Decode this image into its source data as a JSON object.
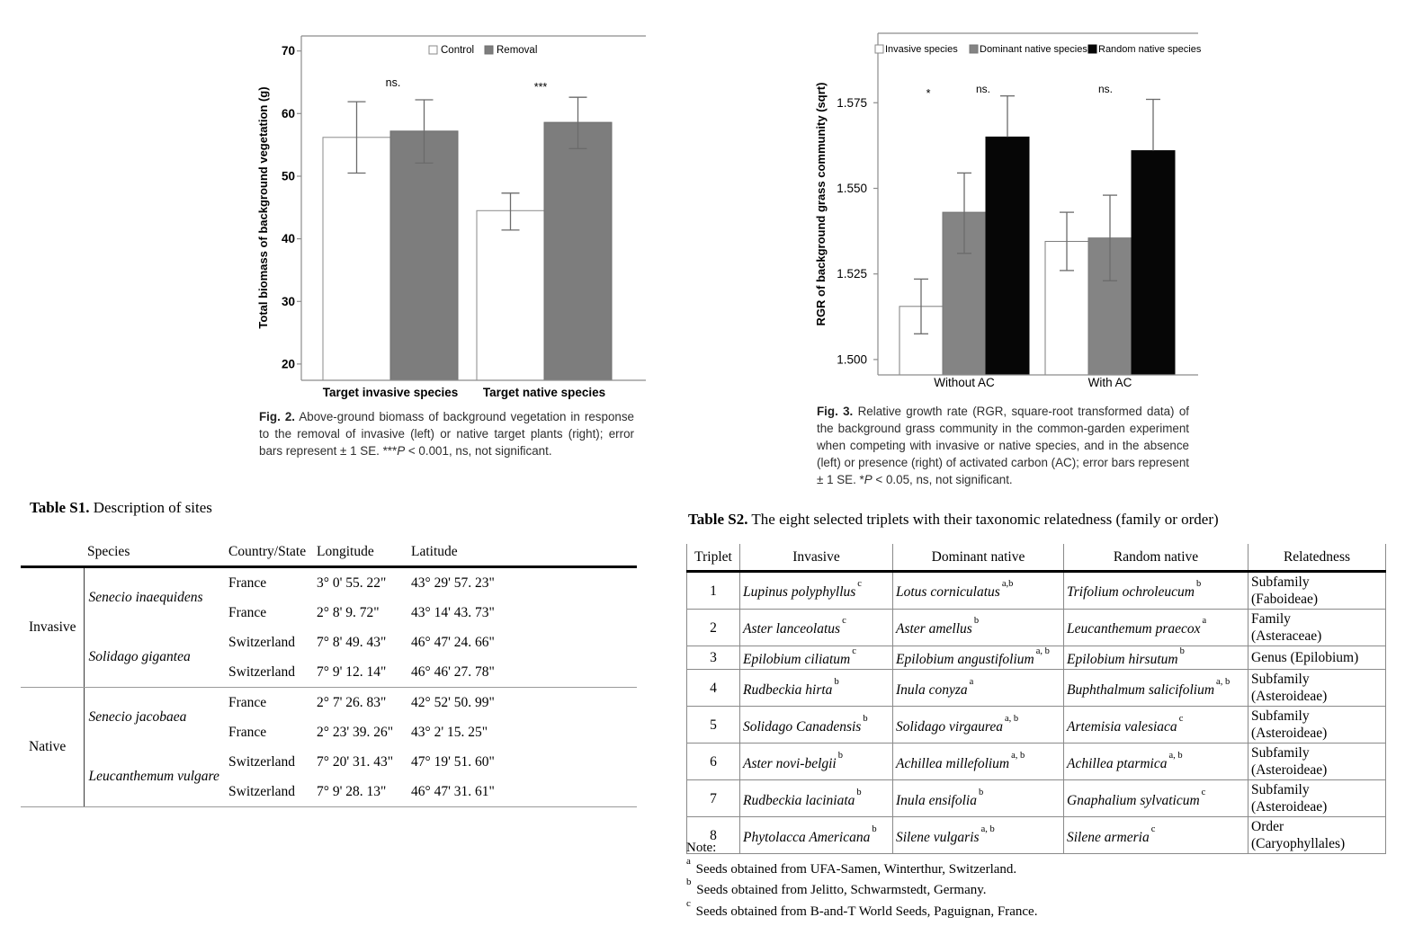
{
  "chart_data": [
    {
      "id": "fig2",
      "type": "bar",
      "title": "",
      "xlabel": "",
      "ylabel": "Total biomass of background vegetation (g)",
      "categories": [
        "Target invasive species",
        "Target native species"
      ],
      "series": [
        {
          "name": "Control",
          "fill": "#ffffff",
          "stroke": "#8a8a8a",
          "values": [
            56.2,
            44.5
          ],
          "err_low": [
            50.5,
            41.4
          ],
          "err_high": [
            61.9,
            47.3
          ]
        },
        {
          "name": "Removal",
          "fill": "#7d7d7d",
          "stroke": "#6f6f6f",
          "values": [
            57.2,
            58.6
          ],
          "err_low": [
            52.1,
            54.4
          ],
          "err_high": [
            62.2,
            62.6
          ]
        }
      ],
      "ylim": [
        17.4,
        72.4
      ],
      "yticks": [
        {
          "v": 20,
          "label": "20"
        },
        {
          "v": 30,
          "label": "30"
        },
        {
          "v": 40,
          "label": "40"
        },
        {
          "v": 50,
          "label": "50"
        },
        {
          "v": 60,
          "label": "60"
        },
        {
          "v": 70,
          "label": "70"
        }
      ],
      "annotations": [
        {
          "text": "ns."
        },
        {
          "text": "***"
        }
      ],
      "legend_position": "top-center",
      "grid": false
    },
    {
      "id": "fig3",
      "type": "bar",
      "title": "",
      "xlabel": "",
      "ylabel": "RGR of background grass community (sqrt)",
      "categories": [
        "Without AC",
        "With AC"
      ],
      "series": [
        {
          "name": "Invasive species",
          "fill": "#ffffff",
          "stroke": "#7e7e7e",
          "values": [
            1.5155,
            1.5345
          ],
          "err_low": [
            1.5075,
            1.526
          ],
          "err_high": [
            1.5235,
            1.543
          ]
        },
        {
          "name": "Dominant native species",
          "fill": "#848484",
          "stroke": "#767676",
          "values": [
            1.543,
            1.5355
          ],
          "err_low": [
            1.531,
            1.523
          ],
          "err_high": [
            1.5545,
            1.548
          ]
        },
        {
          "name": "Random native species",
          "fill": "#060606",
          "stroke": "#060606",
          "values": [
            1.565,
            1.561
          ],
          "err_low": [
            null,
            null
          ],
          "err_high": [
            1.577,
            1.576
          ]
        }
      ],
      "ylim": [
        1.4955,
        1.5953
      ],
      "yticks": [
        {
          "v": 1.5,
          "label": "1.500"
        },
        {
          "v": 1.525,
          "label": "1.525"
        },
        {
          "v": 1.55,
          "label": "1.550"
        },
        {
          "v": 1.575,
          "label": "1.575"
        }
      ],
      "annotations": [
        {
          "text": "*"
        },
        {
          "text": "ns."
        },
        {
          "text": "ns."
        }
      ],
      "legend_position": "top-inside",
      "grid": false
    }
  ],
  "fig2": {
    "caption": {
      "label": "Fig. 2.",
      "body": " Above-ground biomass of background vegetation in response to the removal of invasive (left) or native target plants (right); error bars represent ± 1 SE. ***",
      "p": "P",
      "tail": " < 0.001, ns, not significant."
    }
  },
  "fig3": {
    "caption": {
      "label": "Fig. 3.",
      "body": " Relative growth rate (RGR, square-root transformed data) of the background grass community in the common-garden experiment when competing with invasive or native species, and in the absence (left) or presence (right) of activated carbon (AC); error bars represent ± 1 SE. *",
      "p": "P",
      "tail": " < 0.05, ns, not significant."
    }
  },
  "tableS1": {
    "title_label": "Table S1.",
    "title_text": " Description of sites",
    "headers": [
      "Species",
      "Country/State",
      "Longitude",
      "Latitude"
    ],
    "groups": [
      {
        "label": "Invasive",
        "species": [
          {
            "name": "Senecio inaequidens",
            "sites": [
              [
                "France",
                "3° 0' 55. 22\"",
                "43° 29' 57. 23\""
              ],
              [
                "France",
                "2° 8' 9. 72\"",
                "43° 14' 43. 73\""
              ]
            ]
          },
          {
            "name": "Solidago gigantea",
            "sites": [
              [
                "Switzerland",
                "7° 8' 49. 43\"",
                "46° 47' 24. 66\""
              ],
              [
                "Switzerland",
                "7° 9' 12. 14\"",
                "46° 46' 27. 78\""
              ]
            ]
          }
        ]
      },
      {
        "label": "Native",
        "species": [
          {
            "name": "Senecio jacobaea",
            "sites": [
              [
                "France",
                "2° 7' 26. 83\"",
                "42° 52' 50. 99\""
              ],
              [
                "France",
                "2° 23' 39. 26\"",
                "43° 2' 15. 25\""
              ]
            ]
          },
          {
            "name": "Leucanthemum vulgare",
            "sites": [
              [
                "Switzerland",
                "7° 20' 31. 43\"",
                "47° 19' 51. 60\""
              ],
              [
                "Switzerland",
                "7° 9' 28. 13\"",
                "46° 47' 31. 61\""
              ]
            ]
          }
        ]
      }
    ]
  },
  "tableS2": {
    "title_label": "Table S2.",
    "title_text": " The eight selected triplets with their taxonomic relatedness (family or order)",
    "headers": [
      "Triplet",
      "Invasive",
      "Dominant native",
      "Random native",
      "Relatedness"
    ],
    "rows": [
      {
        "triplet": "1",
        "invasive": {
          "name": "Lupinus polyphyllus",
          "sup": "c"
        },
        "dominant": {
          "name": "Lotus corniculatus",
          "sup": "a,b"
        },
        "random": {
          "name": "Trifolium ochroleucum",
          "sup": "b"
        },
        "relatedness": [
          "Subfamily",
          "(Faboideae)"
        ]
      },
      {
        "triplet": "2",
        "invasive": {
          "name": "Aster lanceolatus",
          "sup": "c"
        },
        "dominant": {
          "name": "Aster amellus",
          "sup": "b"
        },
        "random": {
          "name": "Leucanthemum praecox",
          "sup": "a"
        },
        "relatedness": [
          "Family",
          "(Asteraceae)"
        ]
      },
      {
        "triplet": "3",
        "invasive": {
          "name": "Epilobium ciliatum",
          "sup": "c"
        },
        "dominant": {
          "name": "Epilobium angustifolium",
          "sup": "a, b"
        },
        "random": {
          "name": "Epilobium hirsutum",
          "sup": "b"
        },
        "relatedness": [
          "Genus (Epilobium)"
        ]
      },
      {
        "triplet": "4",
        "invasive": {
          "name": "Rudbeckia hirta",
          "sup": "b"
        },
        "dominant": {
          "name": "Inula conyza",
          "sup": "a"
        },
        "random": {
          "name": "Buphthalmum salicifolium",
          "sup": "a, b"
        },
        "relatedness": [
          "Subfamily",
          "(Asteroideae)"
        ]
      },
      {
        "triplet": "5",
        "invasive": {
          "name": "Solidago Canadensis",
          "sup": "b"
        },
        "dominant": {
          "name": "Solidago virgaurea",
          "sup": "a, b"
        },
        "random": {
          "name": "Artemisia valesiaca",
          "sup": "c"
        },
        "relatedness": [
          "Subfamily",
          "(Asteroideae)"
        ]
      },
      {
        "triplet": "6",
        "invasive": {
          "name": "Aster novi-belgii",
          "sup": "b"
        },
        "dominant": {
          "name": "Achillea millefolium",
          "sup": "a, b"
        },
        "random": {
          "name": "Achillea ptarmica",
          "sup": "a, b"
        },
        "relatedness": [
          "Subfamily",
          "(Asteroideae)"
        ]
      },
      {
        "triplet": "7",
        "invasive": {
          "name": "Rudbeckia laciniata",
          "sup": "b"
        },
        "dominant": {
          "name": "Inula ensifolia",
          "sup": "b"
        },
        "random": {
          "name": "Gnaphalium sylvaticum",
          "sup": "c"
        },
        "relatedness": [
          "Subfamily",
          "(Asteroideae)"
        ]
      },
      {
        "triplet": "8",
        "invasive": {
          "name": "Phytolacca Americana",
          "sup": "b"
        },
        "dominant": {
          "name": "Silene vulgaris",
          "sup": "a, b"
        },
        "random": {
          "name": "Silene armeria",
          "sup": "c"
        },
        "relatedness": [
          "Order",
          "(Caryophyllales)"
        ]
      }
    ],
    "note": {
      "label": "Note:",
      "items": [
        {
          "sup": "a",
          "text": "Seeds obtained from UFA-Samen, Winterthur, Switzerland."
        },
        {
          "sup": "b",
          "text": "Seeds obtained from Jelitto, Schwarmstedt, Germany."
        },
        {
          "sup": "c",
          "text": "Seeds obtained from B-and-T World Seeds, Paguignan, France."
        }
      ]
    }
  }
}
